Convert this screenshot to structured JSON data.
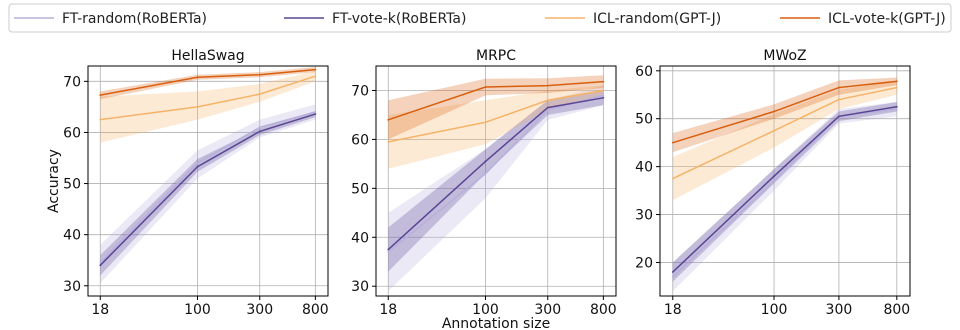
{
  "chart_data": [
    {
      "type": "line",
      "title": "HellaSwag",
      "x": [
        18,
        100,
        300,
        800
      ],
      "xticklabels": [
        "18",
        "100",
        "300",
        "800"
      ],
      "xscale": "log",
      "xlim": [
        14.5,
        1000
      ],
      "ylabel": "Accuracy",
      "ylim": [
        28,
        73
      ],
      "yticks": [
        30,
        40,
        50,
        60,
        70
      ],
      "grid": true,
      "series": [
        {
          "name": "FT-random(RoBERTa)",
          "color": "#b7b0dc",
          "values": [
            34.5,
            54.0,
            61.0,
            64.0
          ],
          "lower": [
            30.5,
            51.0,
            59.0,
            62.5
          ],
          "upper": [
            38.0,
            56.5,
            62.5,
            65.5
          ]
        },
        {
          "name": "FT-vote-k(RoBERTa)",
          "color": "#5a4595",
          "values": [
            34.0,
            53.3,
            60.2,
            63.6
          ],
          "lower": [
            32.0,
            52.3,
            59.5,
            63.0
          ],
          "upper": [
            36.0,
            54.8,
            60.8,
            64.2
          ]
        },
        {
          "name": "ICL-random(GPT-J)",
          "color": "#f5b368",
          "values": [
            62.5,
            65.0,
            67.5,
            71.0
          ],
          "lower": [
            58.0,
            62.5,
            66.0,
            70.0
          ],
          "upper": [
            67.0,
            68.0,
            69.5,
            72.0
          ]
        },
        {
          "name": "ICL-vote-k(GPT-J)",
          "color": "#d95f0e",
          "values": [
            67.3,
            70.8,
            71.3,
            72.3
          ],
          "lower": [
            66.5,
            70.3,
            70.8,
            71.8
          ],
          "upper": [
            68.0,
            71.3,
            71.8,
            72.8
          ]
        }
      ]
    },
    {
      "type": "line",
      "title": "MRPC",
      "x": [
        18,
        100,
        300,
        800
      ],
      "xticklabels": [
        "18",
        "100",
        "300",
        "800"
      ],
      "xscale": "log",
      "xlim": [
        14.5,
        1000
      ],
      "ylim": [
        28,
        75
      ],
      "yticks": [
        30,
        40,
        50,
        60,
        70
      ],
      "grid": true,
      "series": [
        {
          "name": "FT-random(RoBERTa)",
          "color": "#b7b0dc",
          "values": [
            37.0,
            53.0,
            66.0,
            69.0
          ],
          "lower": [
            29.0,
            48.0,
            64.0,
            67.0
          ],
          "upper": [
            45.0,
            58.0,
            68.0,
            71.0
          ]
        },
        {
          "name": "FT-vote-k(RoBERTa)",
          "color": "#5a4595",
          "values": [
            37.5,
            55.5,
            66.5,
            68.5
          ],
          "lower": [
            33.0,
            53.0,
            65.0,
            67.0
          ],
          "upper": [
            42.0,
            58.0,
            68.0,
            70.0
          ]
        },
        {
          "name": "ICL-random(GPT-J)",
          "color": "#f5b368",
          "values": [
            59.5,
            63.5,
            68.0,
            70.0
          ],
          "lower": [
            54.0,
            59.0,
            66.0,
            69.0
          ],
          "upper": [
            65.0,
            68.0,
            70.0,
            71.0
          ]
        },
        {
          "name": "ICL-vote-k(GPT-J)",
          "color": "#d95f0e",
          "values": [
            64.0,
            70.7,
            71.0,
            71.8
          ],
          "lower": [
            60.0,
            69.0,
            69.5,
            70.5
          ],
          "upper": [
            68.0,
            72.4,
            72.5,
            73.1
          ]
        }
      ]
    },
    {
      "type": "line",
      "title": "MWoZ",
      "x": [
        18,
        100,
        300,
        800
      ],
      "xticklabels": [
        "18",
        "100",
        "300",
        "800"
      ],
      "xscale": "log",
      "xlim": [
        14.5,
        1000
      ],
      "ylim": [
        13,
        61
      ],
      "yticks": [
        20,
        30,
        40,
        50,
        60
      ],
      "grid": true,
      "series": [
        {
          "name": "FT-random(RoBERTa)",
          "color": "#b7b0dc",
          "values": [
            17.0,
            37.0,
            50.5,
            52.0
          ],
          "lower": [
            14.0,
            35.0,
            49.0,
            50.5
          ],
          "upper": [
            20.0,
            39.5,
            52.0,
            53.5
          ]
        },
        {
          "name": "FT-vote-k(RoBERTa)",
          "color": "#5a4595",
          "values": [
            18.0,
            38.0,
            50.5,
            52.5
          ],
          "lower": [
            16.0,
            36.5,
            49.5,
            51.5
          ],
          "upper": [
            20.0,
            39.5,
            51.5,
            53.5
          ]
        },
        {
          "name": "ICL-random(GPT-J)",
          "color": "#f5b368",
          "values": [
            37.5,
            47.5,
            54.0,
            56.5
          ],
          "lower": [
            33.0,
            44.0,
            52.0,
            55.0
          ],
          "upper": [
            42.0,
            51.0,
            56.0,
            58.0
          ]
        },
        {
          "name": "ICL-vote-k(GPT-J)",
          "color": "#d95f0e",
          "values": [
            45.0,
            51.5,
            56.5,
            57.8
          ],
          "lower": [
            43.0,
            50.0,
            55.0,
            57.0
          ],
          "upper": [
            47.0,
            53.0,
            58.0,
            58.6
          ]
        }
      ]
    }
  ],
  "shared": {
    "xlabel": "Annotation size",
    "legend": {
      "placement": "top",
      "entries": [
        {
          "label": "FT-random(RoBERTa)",
          "color": "#b7b0dc"
        },
        {
          "label": "FT-vote-k(RoBERTa)",
          "color": "#5a4595"
        },
        {
          "label": "ICL-random(GPT-J)",
          "color": "#f5b368"
        },
        {
          "label": "ICL-vote-k(GPT-J)",
          "color": "#d95f0e"
        }
      ]
    }
  }
}
